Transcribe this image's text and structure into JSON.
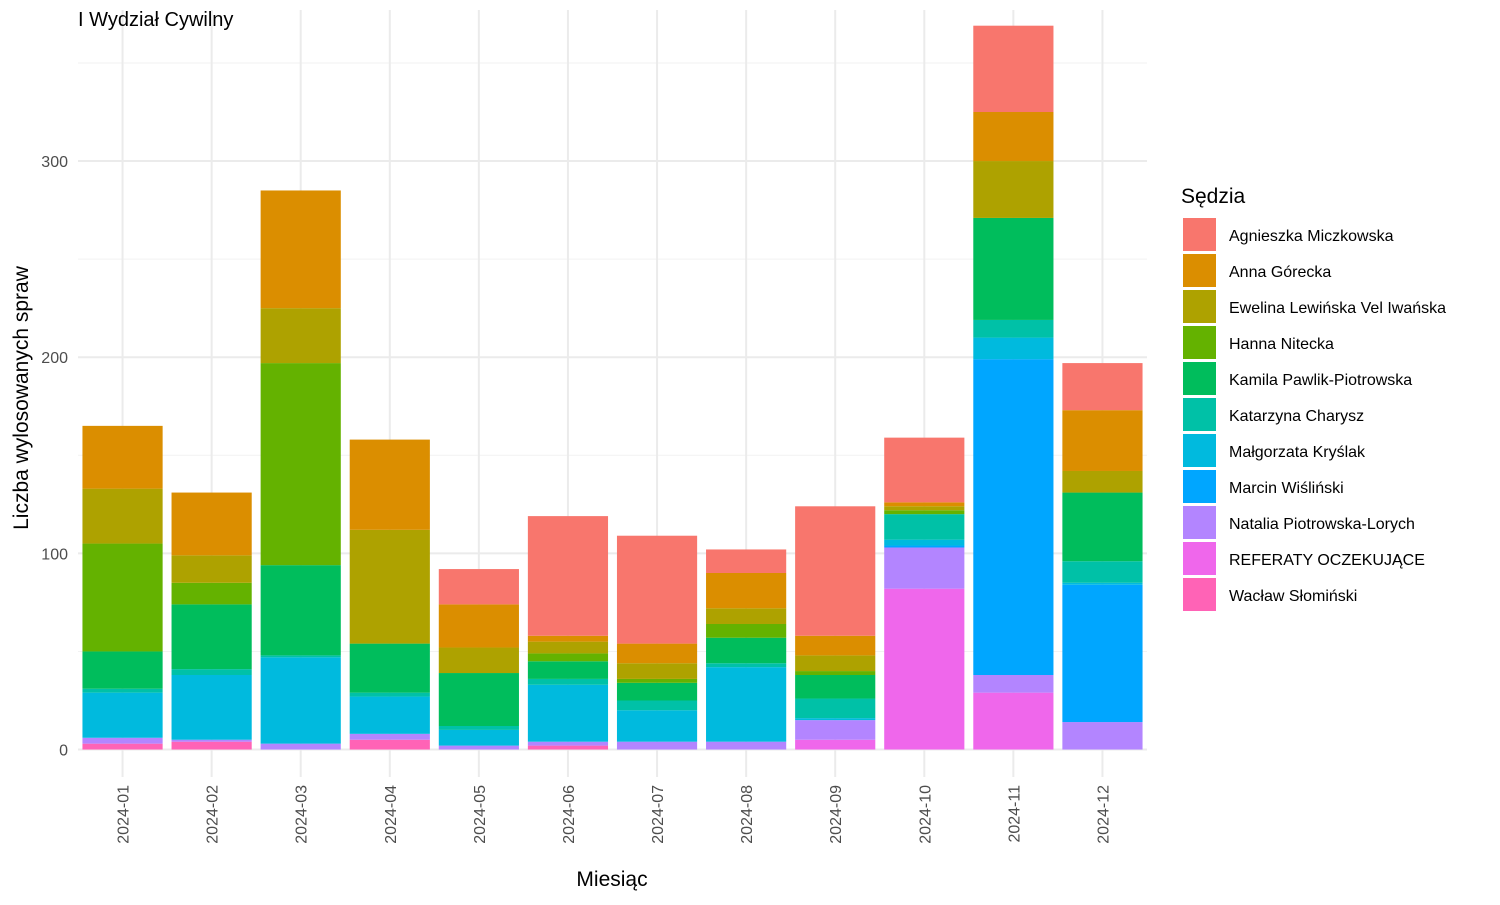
{
  "chart_data": {
    "type": "bar",
    "stacked": true,
    "title": "I Wydział Cywilny",
    "xlabel": "Miesiąc",
    "ylabel": "Liczba wylosowanych spraw",
    "ylim": [
      -14,
      377
    ],
    "yticks": [
      0,
      100,
      200,
      300
    ],
    "grid": true,
    "legend_title": "Sędzia",
    "legend_position": "right",
    "categories": [
      "2024-01",
      "2024-02",
      "2024-03",
      "2024-04",
      "2024-05",
      "2024-06",
      "2024-07",
      "2024-08",
      "2024-09",
      "2024-10",
      "2024-11",
      "2024-12"
    ],
    "series": [
      {
        "name": "Agnieszka Miczkowska",
        "color": "#F8766D",
        "values": [
          0,
          0,
          0,
          0,
          18,
          61,
          55,
          12,
          66,
          33,
          44,
          24
        ]
      },
      {
        "name": "Anna Górecka",
        "color": "#DB8E00",
        "values": [
          32,
          32,
          60,
          46,
          22,
          3,
          10,
          18,
          10,
          2,
          25,
          31
        ]
      },
      {
        "name": "Ewelina Lewińska Vel Iwańska",
        "color": "#AEA200",
        "values": [
          28,
          14,
          28,
          58,
          13,
          6,
          8,
          8,
          8,
          2,
          29,
          11
        ]
      },
      {
        "name": "Hanna Nitecka",
        "color": "#64B200",
        "values": [
          55,
          11,
          103,
          0,
          0,
          4,
          2,
          7,
          2,
          2,
          0,
          0
        ]
      },
      {
        "name": "Kamila Pawlik-Piotrowska",
        "color": "#00BD5C",
        "values": [
          19,
          33,
          46,
          25,
          27,
          9,
          9,
          13,
          12,
          0,
          52,
          35
        ]
      },
      {
        "name": "Katarzyna Charysz",
        "color": "#00C1A7",
        "values": [
          2,
          3,
          1,
          2,
          2,
          3,
          5,
          2,
          10,
          13,
          9,
          11
        ]
      },
      {
        "name": "Małgorzata Kryślak",
        "color": "#00BADE",
        "values": [
          23,
          33,
          44,
          19,
          8,
          29,
          16,
          38,
          1,
          3,
          11,
          1
        ]
      },
      {
        "name": "Marcin Wiśliński",
        "color": "#00A6FF",
        "values": [
          0,
          0,
          0,
          0,
          0,
          0,
          0,
          0,
          0,
          1,
          161,
          70
        ]
      },
      {
        "name": "Natalia Piotrowska-Lorych",
        "color": "#B385FF",
        "values": [
          3,
          1,
          3,
          3,
          2,
          2,
          4,
          4,
          10,
          21,
          9,
          14
        ]
      },
      {
        "name": "REFERATY OCZEKUJĄCE",
        "color": "#EF67EB",
        "values": [
          0,
          0,
          0,
          0,
          0,
          0,
          0,
          0,
          5,
          82,
          29,
          0
        ]
      },
      {
        "name": "Wacław Słomiński",
        "color": "#FF63B6",
        "values": [
          3,
          4,
          0,
          5,
          0,
          2,
          0,
          0,
          0,
          0,
          0,
          0
        ]
      }
    ]
  }
}
